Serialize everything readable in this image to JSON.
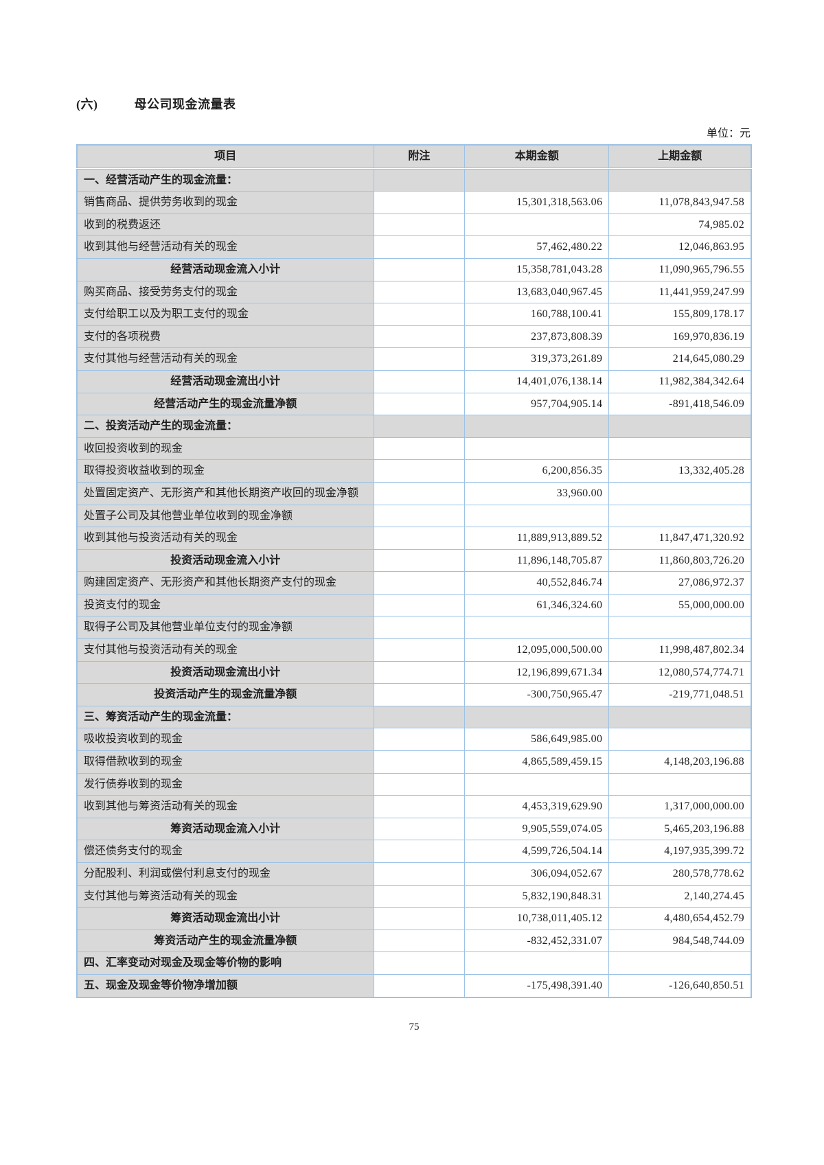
{
  "page": {
    "section_label": "(六)",
    "title": "母公司现金流量表",
    "unit_label": "单位：元",
    "page_number": "75"
  },
  "table": {
    "headers": {
      "item": "项目",
      "note": "附注",
      "current": "本期金额",
      "prior": "上期金额"
    },
    "rows": [
      {
        "type": "section",
        "item": "一、经营活动产生的现金流量：",
        "note": "",
        "current": "",
        "prior": ""
      },
      {
        "type": "data",
        "item": "销售商品、提供劳务收到的现金",
        "note": "",
        "current": "15,301,318,563.06",
        "prior": "11,078,843,947.58"
      },
      {
        "type": "data",
        "item": "收到的税费返还",
        "note": "",
        "current": "",
        "prior": "74,985.02"
      },
      {
        "type": "data",
        "item": "收到其他与经营活动有关的现金",
        "note": "",
        "current": "57,462,480.22",
        "prior": "12,046,863.95"
      },
      {
        "type": "subtotal",
        "item": "经营活动现金流入小计",
        "note": "",
        "current": "15,358,781,043.28",
        "prior": "11,090,965,796.55"
      },
      {
        "type": "data",
        "item": "购买商品、接受劳务支付的现金",
        "note": "",
        "current": "13,683,040,967.45",
        "prior": "11,441,959,247.99"
      },
      {
        "type": "data",
        "item": "支付给职工以及为职工支付的现金",
        "note": "",
        "current": "160,788,100.41",
        "prior": "155,809,178.17"
      },
      {
        "type": "data",
        "item": "支付的各项税费",
        "note": "",
        "current": "237,873,808.39",
        "prior": "169,970,836.19"
      },
      {
        "type": "data",
        "item": "支付其他与经营活动有关的现金",
        "note": "",
        "current": "319,373,261.89",
        "prior": "214,645,080.29"
      },
      {
        "type": "subtotal",
        "item": "经营活动现金流出小计",
        "note": "",
        "current": "14,401,076,138.14",
        "prior": "11,982,384,342.64"
      },
      {
        "type": "subtotal",
        "item": "经营活动产生的现金流量净额",
        "note": "",
        "current": "957,704,905.14",
        "prior": "-891,418,546.09"
      },
      {
        "type": "section",
        "item": "二、投资活动产生的现金流量：",
        "note": "",
        "current": "",
        "prior": ""
      },
      {
        "type": "data",
        "item": "收回投资收到的现金",
        "note": "",
        "current": "",
        "prior": ""
      },
      {
        "type": "data",
        "item": "取得投资收益收到的现金",
        "note": "",
        "current": "6,200,856.35",
        "prior": "13,332,405.28"
      },
      {
        "type": "data",
        "item": "处置固定资产、无形资产和其他长期资产收回的现金净额",
        "note": "",
        "current": "33,960.00",
        "prior": ""
      },
      {
        "type": "data",
        "item": "处置子公司及其他营业单位收到的现金净额",
        "note": "",
        "current": "",
        "prior": ""
      },
      {
        "type": "data",
        "item": "收到其他与投资活动有关的现金",
        "note": "",
        "current": "11,889,913,889.52",
        "prior": "11,847,471,320.92"
      },
      {
        "type": "subtotal",
        "item": "投资活动现金流入小计",
        "note": "",
        "current": "11,896,148,705.87",
        "prior": "11,860,803,726.20"
      },
      {
        "type": "data",
        "item": "购建固定资产、无形资产和其他长期资产支付的现金",
        "note": "",
        "current": "40,552,846.74",
        "prior": "27,086,972.37"
      },
      {
        "type": "data",
        "item": "投资支付的现金",
        "note": "",
        "current": "61,346,324.60",
        "prior": "55,000,000.00"
      },
      {
        "type": "data",
        "item": "取得子公司及其他营业单位支付的现金净额",
        "note": "",
        "current": "",
        "prior": ""
      },
      {
        "type": "data",
        "item": "支付其他与投资活动有关的现金",
        "note": "",
        "current": "12,095,000,500.00",
        "prior": "11,998,487,802.34"
      },
      {
        "type": "subtotal",
        "item": "投资活动现金流出小计",
        "note": "",
        "current": "12,196,899,671.34",
        "prior": "12,080,574,774.71"
      },
      {
        "type": "subtotal",
        "item": "投资活动产生的现金流量净额",
        "note": "",
        "current": "-300,750,965.47",
        "prior": "-219,771,048.51"
      },
      {
        "type": "section",
        "item": "三、筹资活动产生的现金流量：",
        "note": "",
        "current": "",
        "prior": ""
      },
      {
        "type": "data",
        "item": "吸收投资收到的现金",
        "note": "",
        "current": "586,649,985.00",
        "prior": ""
      },
      {
        "type": "data",
        "item": "取得借款收到的现金",
        "note": "",
        "current": "4,865,589,459.15",
        "prior": "4,148,203,196.88"
      },
      {
        "type": "data",
        "item": "发行债券收到的现金",
        "note": "",
        "current": "",
        "prior": ""
      },
      {
        "type": "data",
        "item": "收到其他与筹资活动有关的现金",
        "note": "",
        "current": "4,453,319,629.90",
        "prior": "1,317,000,000.00"
      },
      {
        "type": "subtotal",
        "item": "筹资活动现金流入小计",
        "note": "",
        "current": "9,905,559,074.05",
        "prior": "5,465,203,196.88"
      },
      {
        "type": "data",
        "item": "偿还债务支付的现金",
        "note": "",
        "current": "4,599,726,504.14",
        "prior": "4,197,935,399.72"
      },
      {
        "type": "data",
        "item": "分配股利、利润或偿付利息支付的现金",
        "note": "",
        "current": "306,094,052.67",
        "prior": "280,578,778.62"
      },
      {
        "type": "data",
        "item": "支付其他与筹资活动有关的现金",
        "note": "",
        "current": "5,832,190,848.31",
        "prior": "2,140,274.45"
      },
      {
        "type": "subtotal",
        "item": "筹资活动现金流出小计",
        "note": "",
        "current": "10,738,011,405.12",
        "prior": "4,480,654,452.79"
      },
      {
        "type": "subtotal",
        "item": "筹资活动产生的现金流量净额",
        "note": "",
        "current": "-832,452,331.07",
        "prior": "984,548,744.09"
      },
      {
        "type": "total",
        "item": "四、汇率变动对现金及现金等价物的影响",
        "note": "",
        "current": "",
        "prior": ""
      },
      {
        "type": "total",
        "item": "五、现金及现金等价物净增加额",
        "note": "",
        "current": "-175,498,391.40",
        "prior": "-126,640,850.51"
      }
    ]
  }
}
